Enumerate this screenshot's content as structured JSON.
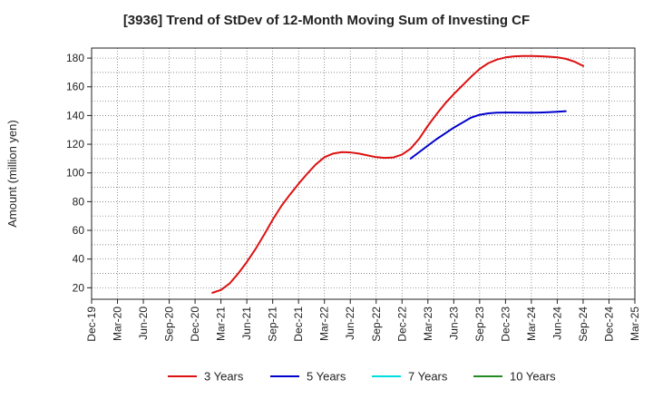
{
  "chart_data": {
    "type": "line",
    "title": "[3936]  Trend of StDev of 12-Month Moving Sum of Investing CF",
    "ylabel": "Amount (million yen)",
    "xlabel": "",
    "ylim": [
      12,
      187
    ],
    "yticks": [
      20,
      40,
      60,
      80,
      100,
      120,
      140,
      160,
      180
    ],
    "x_categories": [
      "Dec-19",
      "Mar-20",
      "Jun-20",
      "Sep-20",
      "Dec-20",
      "Mar-21",
      "Jun-21",
      "Sep-21",
      "Dec-21",
      "Mar-22",
      "Jun-22",
      "Sep-22",
      "Dec-22",
      "Mar-23",
      "Jun-23",
      "Sep-23",
      "Dec-23",
      "Mar-24",
      "Jun-24",
      "Sep-24",
      "Dec-24",
      "Mar-25"
    ],
    "grid": true,
    "legend_position": "bottom",
    "series": [
      {
        "name": "3 Years",
        "color": "#dd1111",
        "start_index": 4.67,
        "values": [
          16.5,
          18.5,
          23,
          30,
          38,
          47,
          57,
          67.5,
          77,
          85,
          92.5,
          99.5,
          106,
          111,
          113.5,
          114.5,
          114.3,
          113.5,
          112.2,
          111,
          110.5,
          110.8,
          112.8,
          117,
          124,
          133,
          141,
          148.5,
          155,
          161,
          167,
          172.5,
          176.5,
          179,
          180.5,
          181.2,
          181.5,
          181.5,
          181.3,
          181,
          180.5,
          179.5,
          177.5,
          174.5
        ]
      },
      {
        "name": "5 Years",
        "color": "#0000cc",
        "start_index": 12.33,
        "values": [
          110,
          114.5,
          119,
          123.5,
          127.5,
          131.5,
          135,
          138.5,
          140.5,
          141.5,
          142,
          142.1,
          142.1,
          142,
          142,
          142.1,
          142.3,
          142.6,
          143
        ]
      },
      {
        "name": "7 Years",
        "color": "#00dddd",
        "start_index": 0,
        "values": []
      },
      {
        "name": "10 Years",
        "color": "#228b22",
        "start_index": 0,
        "values": []
      }
    ]
  }
}
